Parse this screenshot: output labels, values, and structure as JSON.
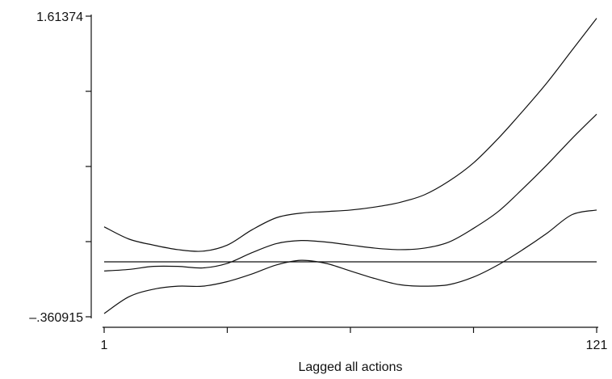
{
  "chart_data": {
    "type": "line",
    "title": "",
    "xlabel": "Lagged all actions",
    "ylabel": "",
    "xlim": [
      1,
      121
    ],
    "ylim": [
      -0.360915,
      1.61374
    ],
    "x_tick_labels": [
      {
        "value": 1,
        "label": "1"
      },
      {
        "value": 121,
        "label": "121"
      }
    ],
    "x_ticks_unlabeled": [
      31,
      61,
      91
    ],
    "y_tick_labels": [
      {
        "value": -0.360915,
        "label": "–.360915"
      },
      {
        "value": 1.61374,
        "label": "1.61374"
      }
    ],
    "y_ticks_unlabeled": [
      0.13275,
      0.62641,
      1.12008
    ],
    "grid": false,
    "series": [
      {
        "role": "upper confidence bound",
        "x": [
          1,
          7,
          13,
          19,
          25,
          31,
          37,
          43,
          49,
          55,
          61,
          67,
          73,
          79,
          85,
          91,
          97,
          103,
          109,
          115,
          121
        ],
        "y": [
          0.23,
          0.15,
          0.11,
          0.08,
          0.07,
          0.11,
          0.21,
          0.29,
          0.32,
          0.33,
          0.34,
          0.36,
          0.39,
          0.44,
          0.53,
          0.65,
          0.81,
          0.99,
          1.18,
          1.39,
          1.6
        ]
      },
      {
        "role": "point estimate",
        "x": [
          1,
          7,
          13,
          19,
          25,
          31,
          37,
          43,
          49,
          55,
          61,
          67,
          73,
          79,
          85,
          91,
          97,
          103,
          109,
          115,
          121
        ],
        "y": [
          -0.06,
          -0.05,
          -0.03,
          -0.03,
          -0.04,
          -0.01,
          0.06,
          0.12,
          0.14,
          0.13,
          0.11,
          0.09,
          0.08,
          0.09,
          0.13,
          0.22,
          0.33,
          0.48,
          0.64,
          0.81,
          0.97
        ]
      },
      {
        "role": "lower confidence bound",
        "x": [
          1,
          7,
          13,
          19,
          25,
          31,
          37,
          43,
          49,
          55,
          61,
          67,
          73,
          79,
          85,
          91,
          97,
          103,
          109,
          115,
          121
        ],
        "y": [
          -0.34,
          -0.23,
          -0.18,
          -0.16,
          -0.16,
          -0.13,
          -0.08,
          -0.02,
          0.01,
          -0.01,
          -0.06,
          -0.11,
          -0.15,
          -0.16,
          -0.15,
          -0.1,
          -0.02,
          0.08,
          0.19,
          0.31,
          0.34
        ]
      }
    ],
    "reference_lines": [
      {
        "axis": "y",
        "value": 0
      }
    ],
    "line_color": "#111111"
  }
}
